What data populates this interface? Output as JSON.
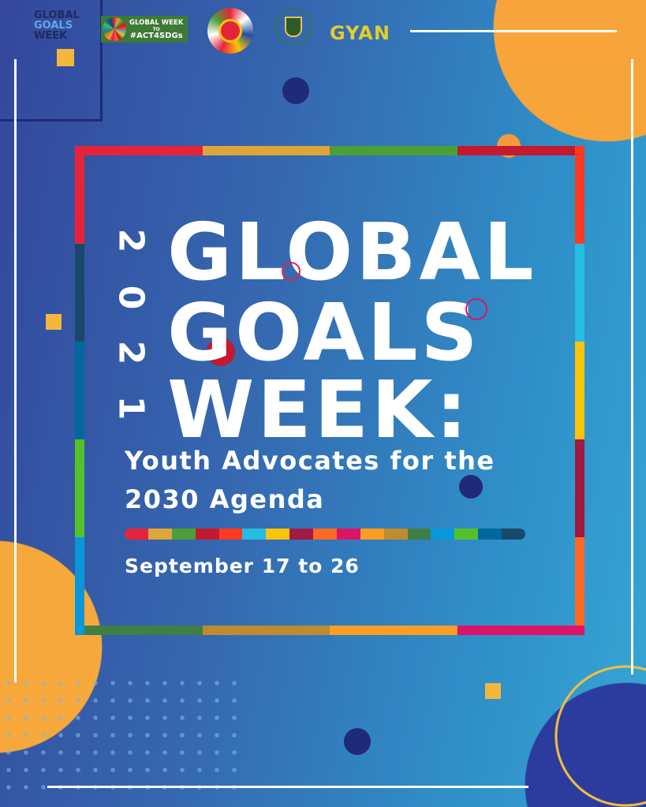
{
  "logos": {
    "global_goals_week": [
      "GLOBAL",
      "GOALS",
      "WEEK"
    ],
    "act4sdgs": {
      "line1": "GLOBAL WEEK",
      "line2": "TO",
      "line3": "#ACT4SDGs"
    },
    "asean": "asean-emblem",
    "school_crest": "school-crest",
    "gyan": "GYAN"
  },
  "title": {
    "year": [
      "2",
      "0",
      "2",
      "1"
    ],
    "lines": [
      "GLOBAL",
      "GOALS",
      "WEEK:"
    ],
    "subtitle": [
      "Youth Advocates for the",
      "2030 Agenda"
    ],
    "date": "September 17 to 26"
  },
  "colors": {
    "background_left": "#34479c",
    "background_right": "#36a6d4",
    "accent_orange": "#f7a53a",
    "accent_yellow": "#f5b63c",
    "dark_navy": "#1f2a78",
    "sdg": [
      "#e5243b",
      "#dda63a",
      "#4c9f38",
      "#c5192d",
      "#ff3a21",
      "#26bde2",
      "#fcc30b",
      "#a21942",
      "#fd6925",
      "#dd1367",
      "#fd9d24",
      "#bf8b2e",
      "#3f7e44",
      "#0a97d9",
      "#56c02b",
      "#00689d",
      "#19486a"
    ]
  }
}
